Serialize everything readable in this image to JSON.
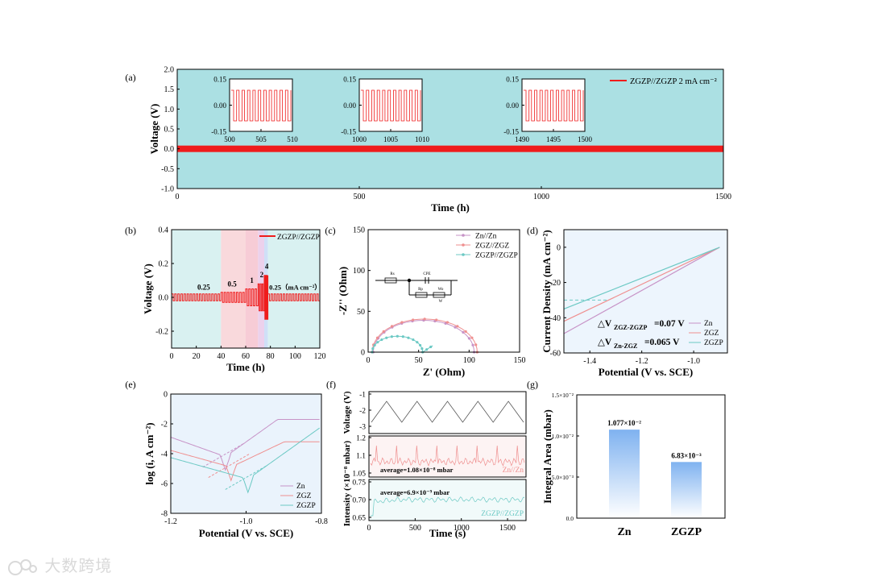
{
  "watermark": "大数跨境",
  "colors": {
    "zgzp_red": "#ef1c1c",
    "zn": "#c793c7",
    "zgz": "#ef8f8f",
    "zgzp": "#6cc9c4",
    "panel_a_bg": "#abe0e3",
    "bar": "#7fb2f0"
  },
  "chart_data": [
    {
      "panel": "(a)",
      "type": "line",
      "xlabel": "Time (h)",
      "ylabel": "Voltage (V)",
      "xlim": [
        0,
        1500
      ],
      "ylim": [
        -1.0,
        2.0
      ],
      "xticks": [
        "0",
        "500",
        "1000",
        "1500"
      ],
      "yticks": [
        "-1.0",
        "-0.5",
        "0.0",
        "0.5",
        "1.0",
        "1.5",
        "2.0"
      ],
      "legend": "ZGZP//ZGZP  2 mA cm⁻²",
      "series": [
        {
          "name": "ZGZP//ZGZP",
          "values_range": [
            -0.05,
            0.05
          ]
        }
      ],
      "insets": [
        {
          "xticks": [
            "500",
            "505",
            "510"
          ],
          "yticks": [
            "0.15",
            "0.00",
            "-0.15"
          ],
          "xlim": [
            500,
            510
          ]
        },
        {
          "xticks": [
            "1000",
            "1005",
            "1010"
          ],
          "yticks": [
            "0.15",
            "0.00",
            "-0.15"
          ],
          "xlim": [
            1000,
            1010
          ]
        },
        {
          "xticks": [
            "1490",
            "1495",
            "1500"
          ],
          "yticks": [
            "0.15",
            "0.00",
            "-0.15"
          ],
          "xlim": [
            1490,
            1500
          ]
        }
      ]
    },
    {
      "panel": "(b)",
      "type": "line",
      "xlabel": "Time (h)",
      "ylabel": "Voltage (V)",
      "xlim": [
        0,
        120
      ],
      "ylim": [
        -0.3,
        0.4
      ],
      "xticks": [
        "0",
        "20",
        "40",
        "60",
        "80",
        "100",
        "120"
      ],
      "yticks": [
        "-0.2",
        "0.0",
        "0.2",
        "0.4"
      ],
      "legend": "ZGZP//ZGZP",
      "rate_labels": [
        "0.25",
        "0.5",
        "1",
        "2",
        "4",
        "0.25（mA cm⁻²）"
      ],
      "segments": [
        {
          "from": 0,
          "to": 40,
          "current": 0.25,
          "amp": 0.02
        },
        {
          "from": 40,
          "to": 60,
          "current": 0.5,
          "amp": 0.03
        },
        {
          "from": 60,
          "to": 70,
          "current": 1,
          "amp": 0.05
        },
        {
          "from": 70,
          "to": 75,
          "current": 2,
          "amp": 0.08
        },
        {
          "from": 75,
          "to": 78,
          "current": 4,
          "amp": 0.13
        },
        {
          "from": 78,
          "to": 120,
          "current": 0.25,
          "amp": 0.02
        }
      ]
    },
    {
      "panel": "(c)",
      "type": "scatter",
      "xlabel": "Z' (Ohm)",
      "ylabel": "-Z'' (Ohm)",
      "xlim": [
        0,
        150
      ],
      "ylim": [
        0,
        150
      ],
      "xticks": [
        "0",
        "50",
        "100",
        "150"
      ],
      "yticks": [
        "0",
        "50",
        "100",
        "150"
      ],
      "circuit_labels": [
        "Rs",
        "CPE",
        "Rp",
        "Wo",
        "W"
      ],
      "series": [
        {
          "name": "Zn//Zn",
          "rs": 5,
          "rct": 100
        },
        {
          "name": "ZGZ//ZGZ",
          "rs": 4,
          "rct": 104
        },
        {
          "name": "ZGZP//ZGZP",
          "rs": 4,
          "rct": 50
        }
      ]
    },
    {
      "panel": "(d)",
      "type": "line",
      "xlabel": "Potential (V vs. SCE)",
      "ylabel": "Current Density (mA cm⁻²)",
      "xlim": [
        -1.5,
        -0.87
      ],
      "ylim": [
        -60,
        10
      ],
      "xticks": [
        "-1.4",
        "-1.2",
        "-1.0"
      ],
      "yticks": [
        "0",
        "-20",
        "-40",
        "-60"
      ],
      "annotations": [
        "△V",
        "ZGZ-ZGZP",
        "=0.07 V",
        "△V",
        "Zn-ZGZ",
        "=0.065 V"
      ],
      "series": [
        {
          "name": "Zn",
          "x": [
            -0.9,
            -1.5
          ],
          "y": [
            0,
            -49
          ]
        },
        {
          "name": "ZGZ",
          "x": [
            -0.9,
            -1.5
          ],
          "y": [
            0,
            -42
          ]
        },
        {
          "name": "ZGZP",
          "x": [
            -0.9,
            -1.5
          ],
          "y": [
            0,
            -35
          ]
        }
      ]
    },
    {
      "panel": "(e)",
      "type": "line",
      "xlabel": "Potential (V vs. SCE)",
      "ylabel": "log (i, A cm⁻²)",
      "xlim": [
        -1.2,
        -0.8
      ],
      "ylim": [
        -8,
        0
      ],
      "xticks": [
        "-1.2",
        "-1.0",
        "-0.8"
      ],
      "yticks": [
        "0",
        "-2",
        "-4",
        "-6",
        "-8"
      ],
      "series": [
        {
          "name": "Zn",
          "ecorr": -1.055,
          "icorr": -5.1
        },
        {
          "name": "ZGZ",
          "ecorr": -1.04,
          "icorr": -5.8
        },
        {
          "name": "ZGZP",
          "ecorr": -0.995,
          "icorr": -6.6
        }
      ]
    },
    {
      "panel": "(f)",
      "type": "line",
      "xlabel": "Time (s)",
      "ylabel_top": "Voltage (V)",
      "ylabel_bottom": "Intensity (×10⁻⁸ mbar)",
      "xlim": [
        0,
        1700
      ],
      "xticks": [
        "0",
        "500",
        "1000",
        "1500"
      ],
      "voltage_yticks": [
        "-1",
        "-2",
        "-3"
      ],
      "zn_yticks": [
        "1.2",
        "1.1",
        "1.05"
      ],
      "zgzp_yticks": [
        "0.75",
        "0.70",
        "0.65"
      ],
      "averages": [
        "average=1.08×10⁻⁸ mbar",
        "average=6.9×10⁻⁹ mbar"
      ],
      "series": [
        {
          "name": "Zn//Zn",
          "mean": 1.08
        },
        {
          "name": "ZGZP//ZGZP",
          "mean": 0.69
        }
      ]
    },
    {
      "panel": "(g)",
      "type": "bar",
      "ylabel": "Integral Area (mbar)",
      "categories": [
        "Zn",
        "ZGZP"
      ],
      "values": [
        0.01077,
        0.00683
      ],
      "value_labels": [
        "1.077×10⁻²",
        "6.83×10⁻³"
      ],
      "ylim": [
        0,
        0.015
      ],
      "yticks": [
        "1.5×10⁻²",
        "1.0×10⁻²",
        "5.0×10⁻³",
        "0.0"
      ]
    }
  ]
}
